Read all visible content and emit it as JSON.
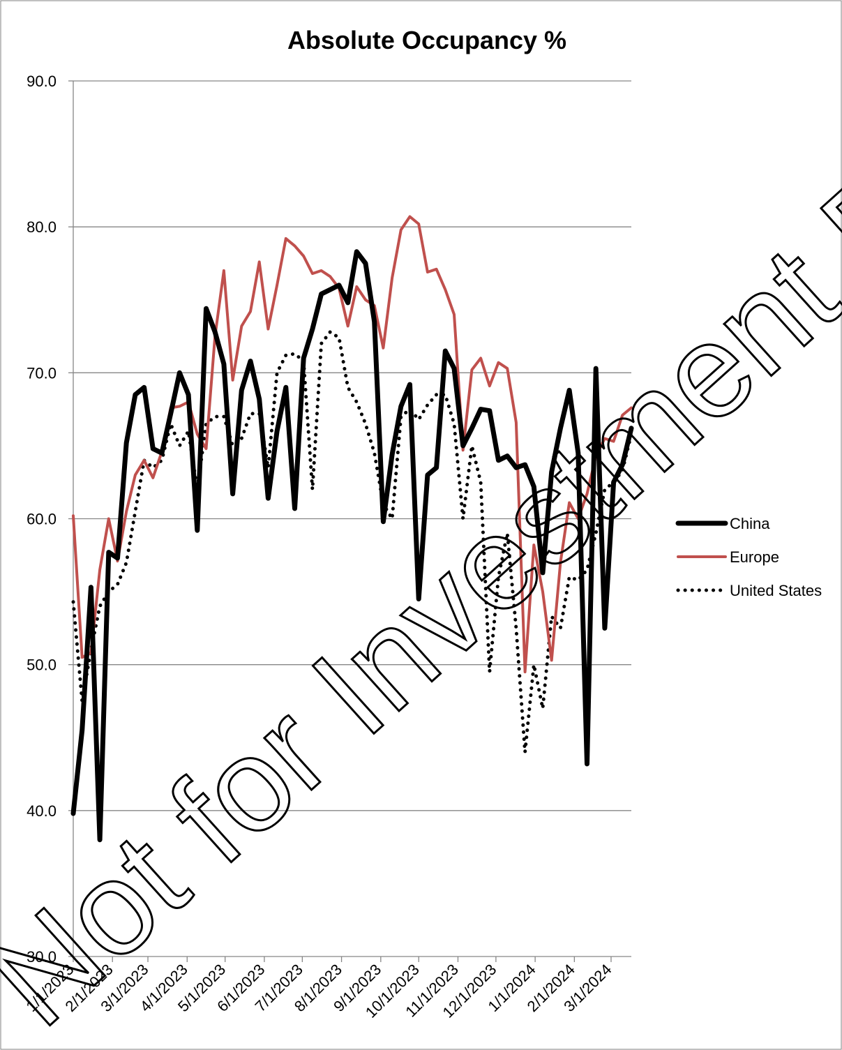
{
  "chart_data": {
    "type": "line",
    "title": "Absolute Occupancy %",
    "xlabel": "",
    "ylabel": "",
    "ylim": [
      30,
      90
    ],
    "xlim": [
      "2023-01-01",
      "2024-03-17"
    ],
    "y_ticks": [
      "30.0",
      "40.0",
      "50.0",
      "60.0",
      "70.0",
      "80.0",
      "90.0"
    ],
    "x_ticks": [
      {
        "date": "2023-01-01",
        "label": "1/1/2023"
      },
      {
        "date": "2023-02-01",
        "label": "2/1/2023"
      },
      {
        "date": "2023-03-01",
        "label": "3/1/2023"
      },
      {
        "date": "2023-04-01",
        "label": "4/1/2023"
      },
      {
        "date": "2023-05-01",
        "label": "5/1/2023"
      },
      {
        "date": "2023-06-01",
        "label": "6/1/2023"
      },
      {
        "date": "2023-07-01",
        "label": "7/1/2023"
      },
      {
        "date": "2023-08-01",
        "label": "8/1/2023"
      },
      {
        "date": "2023-09-01",
        "label": "9/1/2023"
      },
      {
        "date": "2023-10-01",
        "label": "10/1/2023"
      },
      {
        "date": "2023-11-01",
        "label": "11/1/2023"
      },
      {
        "date": "2023-12-01",
        "label": "12/1/2023"
      },
      {
        "date": "2024-01-01",
        "label": "1/1/2024"
      },
      {
        "date": "2024-02-01",
        "label": "2/1/2024"
      },
      {
        "date": "2024-03-01",
        "label": "3/1/2024"
      }
    ],
    "grid": true,
    "legend_position": "right",
    "series": [
      {
        "name": "China",
        "color": "#000000",
        "style": "solid-thick",
        "points": [
          [
            "2023-01-01",
            39.8
          ],
          [
            "2023-01-08",
            45.5
          ],
          [
            "2023-01-15",
            55.3
          ],
          [
            "2023-01-22",
            38.0
          ],
          [
            "2023-01-29",
            57.7
          ],
          [
            "2023-02-05",
            57.3
          ],
          [
            "2023-02-12",
            65.2
          ],
          [
            "2023-02-19",
            68.5
          ],
          [
            "2023-02-26",
            69.0
          ],
          [
            "2023-03-05",
            64.8
          ],
          [
            "2023-03-12",
            64.5
          ],
          [
            "2023-03-19",
            67.2
          ],
          [
            "2023-03-26",
            70.0
          ],
          [
            "2023-04-02",
            68.5
          ],
          [
            "2023-04-09",
            59.2
          ],
          [
            "2023-04-16",
            74.4
          ],
          [
            "2023-04-23",
            72.8
          ],
          [
            "2023-04-30",
            70.6
          ],
          [
            "2023-05-07",
            61.7
          ],
          [
            "2023-05-14",
            68.8
          ],
          [
            "2023-05-21",
            70.8
          ],
          [
            "2023-05-28",
            68.2
          ],
          [
            "2023-06-04",
            61.4
          ],
          [
            "2023-06-11",
            66.0
          ],
          [
            "2023-06-18",
            69.0
          ],
          [
            "2023-06-25",
            60.7
          ],
          [
            "2023-07-02",
            71.0
          ],
          [
            "2023-07-09",
            73.0
          ],
          [
            "2023-07-16",
            75.4
          ],
          [
            "2023-07-23",
            75.7
          ],
          [
            "2023-07-30",
            76.0
          ],
          [
            "2023-08-06",
            74.8
          ],
          [
            "2023-08-13",
            78.3
          ],
          [
            "2023-08-20",
            77.5
          ],
          [
            "2023-08-27",
            73.5
          ],
          [
            "2023-09-03",
            59.8
          ],
          [
            "2023-09-10",
            64.4
          ],
          [
            "2023-09-17",
            67.7
          ],
          [
            "2023-09-24",
            69.2
          ],
          [
            "2023-10-01",
            54.5
          ],
          [
            "2023-10-08",
            63.0
          ],
          [
            "2023-10-15",
            63.5
          ],
          [
            "2023-10-22",
            71.5
          ],
          [
            "2023-10-29",
            70.3
          ],
          [
            "2023-11-05",
            65.0
          ],
          [
            "2023-11-12",
            66.2
          ],
          [
            "2023-11-19",
            67.5
          ],
          [
            "2023-11-26",
            67.4
          ],
          [
            "2023-12-03",
            64.0
          ],
          [
            "2023-12-10",
            64.3
          ],
          [
            "2023-12-17",
            63.5
          ],
          [
            "2023-12-24",
            63.7
          ],
          [
            "2023-12-31",
            62.2
          ],
          [
            "2024-01-07",
            56.3
          ],
          [
            "2024-01-14",
            63.2
          ],
          [
            "2024-01-21",
            66.2
          ],
          [
            "2024-01-28",
            68.8
          ],
          [
            "2024-02-04",
            64.5
          ],
          [
            "2024-02-11",
            43.2
          ],
          [
            "2024-02-18",
            70.3
          ],
          [
            "2024-02-25",
            52.5
          ],
          [
            "2024-03-03",
            62.5
          ],
          [
            "2024-03-10",
            63.7
          ],
          [
            "2024-03-17",
            66.2
          ]
        ]
      },
      {
        "name": "Europe",
        "color": "#c0504d",
        "style": "solid",
        "points": [
          [
            "2023-01-01",
            60.2
          ],
          [
            "2023-01-08",
            50.5
          ],
          [
            "2023-01-15",
            50.8
          ],
          [
            "2023-01-22",
            56.5
          ],
          [
            "2023-01-29",
            60.0
          ],
          [
            "2023-02-05",
            57.1
          ],
          [
            "2023-02-12",
            60.5
          ],
          [
            "2023-02-19",
            63.0
          ],
          [
            "2023-02-26",
            64.0
          ],
          [
            "2023-03-05",
            62.8
          ],
          [
            "2023-03-12",
            64.6
          ],
          [
            "2023-03-19",
            67.6
          ],
          [
            "2023-03-26",
            67.7
          ],
          [
            "2023-04-02",
            68.0
          ],
          [
            "2023-04-09",
            65.8
          ],
          [
            "2023-04-16",
            64.8
          ],
          [
            "2023-04-23",
            72.5
          ],
          [
            "2023-04-30",
            77.0
          ],
          [
            "2023-05-07",
            69.5
          ],
          [
            "2023-05-14",
            73.2
          ],
          [
            "2023-05-21",
            74.2
          ],
          [
            "2023-05-28",
            77.6
          ],
          [
            "2023-06-04",
            73.0
          ],
          [
            "2023-06-11",
            76.0
          ],
          [
            "2023-06-18",
            79.2
          ],
          [
            "2023-06-25",
            78.7
          ],
          [
            "2023-07-02",
            78.0
          ],
          [
            "2023-07-09",
            76.8
          ],
          [
            "2023-07-16",
            77.0
          ],
          [
            "2023-07-23",
            76.6
          ],
          [
            "2023-07-30",
            75.8
          ],
          [
            "2023-08-06",
            73.2
          ],
          [
            "2023-08-13",
            75.9
          ],
          [
            "2023-08-20",
            75.0
          ],
          [
            "2023-08-27",
            74.6
          ],
          [
            "2023-09-03",
            71.7
          ],
          [
            "2023-09-10",
            76.5
          ],
          [
            "2023-09-17",
            79.8
          ],
          [
            "2023-09-24",
            80.7
          ],
          [
            "2023-10-01",
            80.2
          ],
          [
            "2023-10-08",
            76.9
          ],
          [
            "2023-10-15",
            77.1
          ],
          [
            "2023-10-22",
            75.7
          ],
          [
            "2023-10-29",
            74.0
          ],
          [
            "2023-11-05",
            64.7
          ],
          [
            "2023-11-12",
            70.2
          ],
          [
            "2023-11-19",
            71.0
          ],
          [
            "2023-11-26",
            69.1
          ],
          [
            "2023-12-03",
            70.7
          ],
          [
            "2023-12-10",
            70.3
          ],
          [
            "2023-12-17",
            66.6
          ],
          [
            "2023-12-24",
            49.5
          ],
          [
            "2023-12-31",
            58.2
          ],
          [
            "2024-01-07",
            55.0
          ],
          [
            "2024-01-14",
            50.3
          ],
          [
            "2024-01-21",
            57.0
          ],
          [
            "2024-01-28",
            61.1
          ],
          [
            "2024-02-04",
            60.0
          ],
          [
            "2024-02-11",
            61.7
          ],
          [
            "2024-02-18",
            64.3
          ],
          [
            "2024-02-25",
            65.5
          ],
          [
            "2024-03-03",
            65.3
          ],
          [
            "2024-03-10",
            67.1
          ],
          [
            "2024-03-17",
            67.6
          ]
        ]
      },
      {
        "name": "United States",
        "color": "#000000",
        "style": "dotted",
        "points": [
          [
            "2023-01-01",
            54.3
          ],
          [
            "2023-01-08",
            47.5
          ],
          [
            "2023-01-15",
            51.0
          ],
          [
            "2023-01-22",
            54.0
          ],
          [
            "2023-01-29",
            55.0
          ],
          [
            "2023-02-05",
            55.5
          ],
          [
            "2023-02-12",
            57.0
          ],
          [
            "2023-02-19",
            60.5
          ],
          [
            "2023-02-26",
            64.0
          ],
          [
            "2023-03-05",
            63.5
          ],
          [
            "2023-03-12",
            64.0
          ],
          [
            "2023-03-19",
            66.5
          ],
          [
            "2023-03-26",
            65.0
          ],
          [
            "2023-04-02",
            66.0
          ],
          [
            "2023-04-09",
            62.0
          ],
          [
            "2023-04-16",
            66.5
          ],
          [
            "2023-04-23",
            67.0
          ],
          [
            "2023-04-30",
            67.0
          ],
          [
            "2023-05-07",
            65.0
          ],
          [
            "2023-05-14",
            65.5
          ],
          [
            "2023-05-21",
            67.2
          ],
          [
            "2023-05-28",
            67.2
          ],
          [
            "2023-06-04",
            63.5
          ],
          [
            "2023-06-11",
            70.0
          ],
          [
            "2023-06-18",
            71.2
          ],
          [
            "2023-06-25",
            71.3
          ],
          [
            "2023-07-02",
            70.8
          ],
          [
            "2023-07-09",
            62.0
          ],
          [
            "2023-07-16",
            72.0
          ],
          [
            "2023-07-23",
            72.8
          ],
          [
            "2023-07-30",
            72.4
          ],
          [
            "2023-08-06",
            69.0
          ],
          [
            "2023-08-13",
            68.0
          ],
          [
            "2023-08-20",
            66.5
          ],
          [
            "2023-08-27",
            64.5
          ],
          [
            "2023-09-03",
            61.0
          ],
          [
            "2023-09-10",
            60.0
          ],
          [
            "2023-09-17",
            67.0
          ],
          [
            "2023-09-24",
            67.5
          ],
          [
            "2023-10-01",
            66.8
          ],
          [
            "2023-10-08",
            67.8
          ],
          [
            "2023-10-15",
            68.5
          ],
          [
            "2023-10-22",
            68.5
          ],
          [
            "2023-10-29",
            66.5
          ],
          [
            "2023-11-05",
            60.0
          ],
          [
            "2023-11-12",
            65.0
          ],
          [
            "2023-11-19",
            62.5
          ],
          [
            "2023-11-26",
            49.5
          ],
          [
            "2023-12-03",
            56.0
          ],
          [
            "2023-12-10",
            59.0
          ],
          [
            "2023-12-17",
            52.5
          ],
          [
            "2023-12-24",
            44.0
          ],
          [
            "2023-12-31",
            50.0
          ],
          [
            "2024-01-07",
            47.0
          ],
          [
            "2024-01-14",
            53.3
          ],
          [
            "2024-01-21",
            52.5
          ],
          [
            "2024-01-28",
            56.0
          ],
          [
            "2024-02-04",
            55.8
          ],
          [
            "2024-02-11",
            56.5
          ],
          [
            "2024-02-18",
            59.0
          ],
          [
            "2024-02-25",
            62.0
          ],
          [
            "2024-03-03",
            62.5
          ],
          [
            "2024-03-10",
            63.3
          ],
          [
            "2024-03-17",
            65.8
          ]
        ]
      }
    ],
    "watermark": "Not for Investment Purpos"
  }
}
